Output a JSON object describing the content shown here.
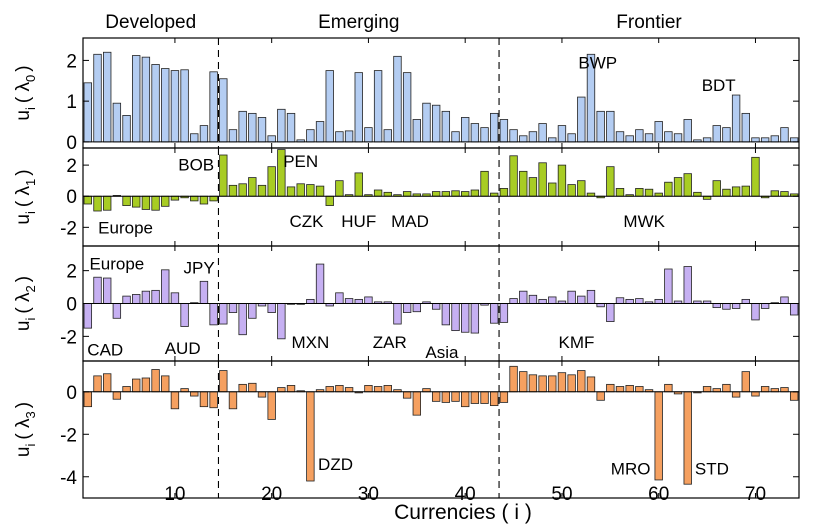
{
  "chart_data": {
    "type": "bar",
    "x": [
      1,
      2,
      3,
      4,
      5,
      6,
      7,
      8,
      9,
      10,
      11,
      12,
      13,
      14,
      15,
      16,
      17,
      18,
      19,
      20,
      21,
      22,
      23,
      24,
      25,
      26,
      27,
      28,
      29,
      30,
      31,
      32,
      33,
      34,
      35,
      36,
      37,
      38,
      39,
      40,
      41,
      42,
      43,
      44,
      45,
      46,
      47,
      48,
      49,
      50,
      51,
      52,
      53,
      54,
      55,
      56,
      57,
      58,
      59,
      60,
      61,
      62,
      63,
      64,
      65,
      66,
      67,
      68,
      69,
      70,
      71,
      72,
      73,
      74
    ],
    "xlabel": "Currencies ( i )",
    "xlim": [
      0.5,
      74.5
    ],
    "xticks": [
      10,
      20,
      30,
      40,
      50,
      60,
      70
    ],
    "regions": [
      {
        "label": "Developed",
        "start": 0.5,
        "end": 14.5
      },
      {
        "label": "Emerging",
        "start": 14.5,
        "end": 43.5
      },
      {
        "label": "Frontier",
        "start": 43.5,
        "end": 74.5
      }
    ],
    "dividers": [
      14.5,
      43.5
    ],
    "panels": [
      {
        "ylabel_main": "u",
        "ylabel_sub": "i",
        "ylabel_open": "( λ",
        "ylabel_index": "0",
        "ylabel_close": ")",
        "color": "#b4cdf2",
        "ylim": [
          -0.15,
          2.55
        ],
        "yticks": [
          0,
          1,
          2
        ],
        "values": [
          1.45,
          2.15,
          2.2,
          0.95,
          0.65,
          2.12,
          2.08,
          1.9,
          1.8,
          1.75,
          1.77,
          0.2,
          0.4,
          1.72,
          1.55,
          0.3,
          0.75,
          0.7,
          0.6,
          0.15,
          0.8,
          0.7,
          0.05,
          0.3,
          0.5,
          1.75,
          0.25,
          0.27,
          1.7,
          0.35,
          1.75,
          0.3,
          2.1,
          1.7,
          0.55,
          0.95,
          0.9,
          0.75,
          0.25,
          0.6,
          0.45,
          0.35,
          0.7,
          0.55,
          0.3,
          0.15,
          0.25,
          0.45,
          0.1,
          0.4,
          0.2,
          1.1,
          2.15,
          0.75,
          0.75,
          0.25,
          0.15,
          0.3,
          0.2,
          0.5,
          0.25,
          0.2,
          0.55,
          0.05,
          0.1,
          0.4,
          0.35,
          1.15,
          0.7,
          0.1,
          0.1,
          0.15,
          0.35,
          0.1
        ],
        "annotations": [
          {
            "text": "BWP",
            "x": 53.7,
            "y": 1.95
          },
          {
            "text": "BDT",
            "x": 66.2,
            "y": 1.4
          }
        ]
      },
      {
        "ylabel_main": "u",
        "ylabel_sub": "i",
        "ylabel_open": "( λ",
        "ylabel_index": "1",
        "ylabel_close": ")",
        "color": "#a8cc24",
        "ylim": [
          -3.2,
          3.1
        ],
        "yticks": [
          -2,
          0,
          2
        ],
        "values": [
          -0.5,
          -0.95,
          -0.9,
          0.05,
          -0.6,
          -0.7,
          -0.85,
          -0.9,
          -0.65,
          -0.25,
          -0.1,
          -0.3,
          -0.5,
          -0.3,
          2.65,
          0.7,
          0.8,
          1.2,
          0.7,
          1.9,
          3.0,
          0.6,
          0.8,
          0.75,
          0.65,
          -0.6,
          1.0,
          0.1,
          1.5,
          0.1,
          0.4,
          0.25,
          0.1,
          0.3,
          0.15,
          0.15,
          0.3,
          0.3,
          0.35,
          0.3,
          0.4,
          1.6,
          0.2,
          0.5,
          2.6,
          1.6,
          1.2,
          2.15,
          0.85,
          2.0,
          0.75,
          1.0,
          0.2,
          -0.1,
          1.9,
          0.5,
          0.1,
          0.5,
          0.45,
          0.2,
          0.9,
          1.2,
          1.45,
          0.25,
          -0.2,
          1.0,
          0.45,
          0.6,
          0.65,
          2.5,
          -0.1,
          0.35,
          0.3,
          0.15
        ],
        "annotations": [
          {
            "text": "BOB",
            "x": 12.2,
            "y": 2.05
          },
          {
            "text": "PEN",
            "x": 23.0,
            "y": 2.25
          },
          {
            "text": "Europe",
            "x": 4.9,
            "y": -2.0
          },
          {
            "text": "CZK",
            "x": 23.6,
            "y": -1.6
          },
          {
            "text": "HUF",
            "x": 29.0,
            "y": -1.6
          },
          {
            "text": "MAD",
            "x": 34.3,
            "y": -1.6
          },
          {
            "text": "MWK",
            "x": 58.5,
            "y": -1.6
          }
        ]
      },
      {
        "ylabel_main": "u",
        "ylabel_sub": "i",
        "ylabel_open": "( λ",
        "ylabel_index": "2",
        "ylabel_close": ")",
        "color": "#c6b0f2",
        "ylim": [
          -3.5,
          3.5
        ],
        "yticks": [
          -2,
          0,
          2
        ],
        "values": [
          -1.5,
          1.6,
          1.55,
          -0.9,
          0.45,
          0.55,
          0.75,
          0.8,
          2.05,
          0.65,
          -1.4,
          0.05,
          1.35,
          -1.3,
          -1.25,
          -0.55,
          -1.9,
          -0.9,
          -0.15,
          -0.55,
          -2.15,
          -0.05,
          -0.05,
          0.25,
          2.4,
          -0.15,
          0.65,
          0.3,
          0.25,
          0.4,
          0.1,
          0.1,
          -1.25,
          -0.55,
          -0.5,
          0.1,
          -0.35,
          -1.3,
          -1.65,
          -1.75,
          -1.8,
          -0.1,
          -1.2,
          -1.15,
          0.3,
          0.75,
          0.5,
          0.25,
          0.4,
          0.15,
          0.75,
          0.45,
          0.8,
          -0.2,
          -1.1,
          0.35,
          0.25,
          0.3,
          0.1,
          0.25,
          2.1,
          0.15,
          2.25,
          0.15,
          0.15,
          -0.25,
          -0.35,
          -0.3,
          0.25,
          -1.0,
          -0.3,
          0.05,
          0.4,
          -0.7
        ],
        "annotations": [
          {
            "text": "Europe",
            "x": 4.0,
            "y": 2.45
          },
          {
            "text": "JPY",
            "x": 12.5,
            "y": 2.2
          },
          {
            "text": "CAD",
            "x": 2.8,
            "y": -2.8
          },
          {
            "text": "AUD",
            "x": 10.8,
            "y": -2.7
          },
          {
            "text": "MXN",
            "x": 24.0,
            "y": -2.35
          },
          {
            "text": "ZAR",
            "x": 32.2,
            "y": -2.35
          },
          {
            "text": "Asia",
            "x": 37.6,
            "y": -2.95
          },
          {
            "text": "KMF",
            "x": 51.5,
            "y": -2.35
          }
        ]
      },
      {
        "ylabel_main": "u",
        "ylabel_sub": "i",
        "ylabel_open": "( λ",
        "ylabel_index": "3",
        "ylabel_close": ")",
        "color": "#f5a060",
        "ylim": [
          -5.0,
          1.45
        ],
        "yticks": [
          -4,
          -2,
          0
        ],
        "values": [
          -0.7,
          0.75,
          0.85,
          -0.35,
          0.25,
          0.6,
          0.65,
          1.05,
          0.75,
          -0.8,
          0.15,
          -0.2,
          -0.7,
          -0.75,
          1.0,
          -0.8,
          0.35,
          0.4,
          -0.25,
          -1.3,
          0.2,
          0.3,
          0.05,
          -4.2,
          0.1,
          0.25,
          0.3,
          0.2,
          -0.05,
          0.3,
          0.25,
          0.3,
          0.1,
          -0.3,
          -1.1,
          0.15,
          -0.45,
          -0.5,
          -0.45,
          -0.7,
          -0.55,
          -0.55,
          -0.65,
          -0.5,
          1.2,
          0.95,
          0.8,
          0.75,
          0.75,
          0.9,
          0.8,
          1.0,
          0.7,
          -0.4,
          0.35,
          0.25,
          0.3,
          0.25,
          0.1,
          -4.15,
          0.35,
          -0.1,
          -4.35,
          -0.05,
          0.25,
          0.15,
          0.35,
          -0.25,
          0.95,
          -0.2,
          0.25,
          0.15,
          0.2,
          -0.4
        ],
        "annotations": [
          {
            "text": "DZD",
            "x": 26.6,
            "y": -3.4
          },
          {
            "text": "MRO",
            "x": 57.1,
            "y": -3.6
          },
          {
            "text": "STD",
            "x": 65.5,
            "y": -3.6
          }
        ]
      }
    ]
  }
}
